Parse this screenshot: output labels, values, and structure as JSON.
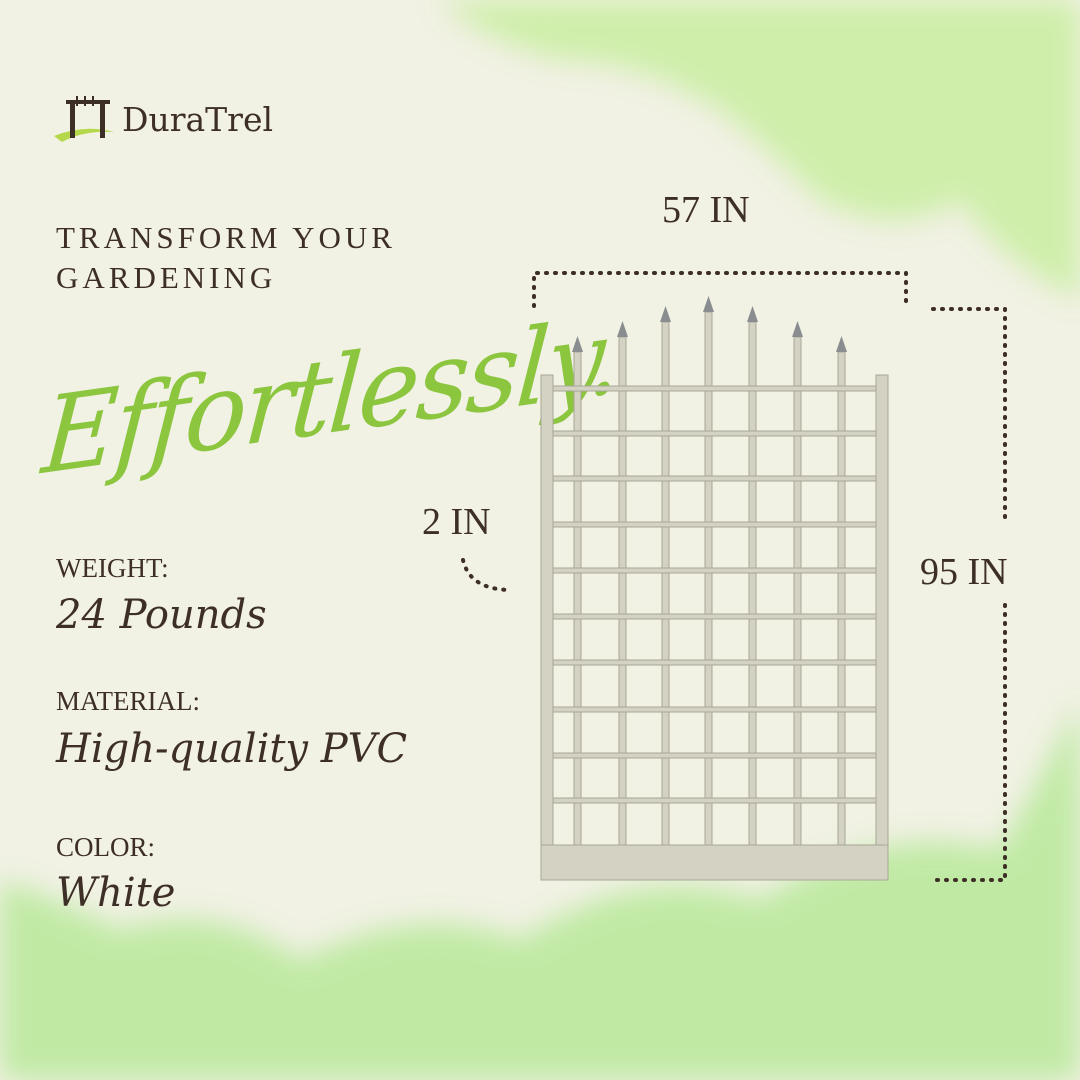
{
  "brand": {
    "name": "DuraTrel"
  },
  "headline": {
    "line1": "TRANSFORM YOUR",
    "line2": "GARDENING",
    "script": "Effortlessly."
  },
  "specs": [
    {
      "label": "WEIGHT:",
      "value": "24 Pounds"
    },
    {
      "label": "MATERIAL:",
      "value": "High-quality PVC"
    },
    {
      "label": "COLOR:",
      "value": "White"
    }
  ],
  "dimensions": {
    "width": "57 IN",
    "height": "95 IN",
    "depth": "2 IN"
  },
  "colors": {
    "background": "#f1f1e4",
    "accent_green": "#8cc63f",
    "text": "#3d2e26",
    "trellis": "#d4d2c2"
  }
}
